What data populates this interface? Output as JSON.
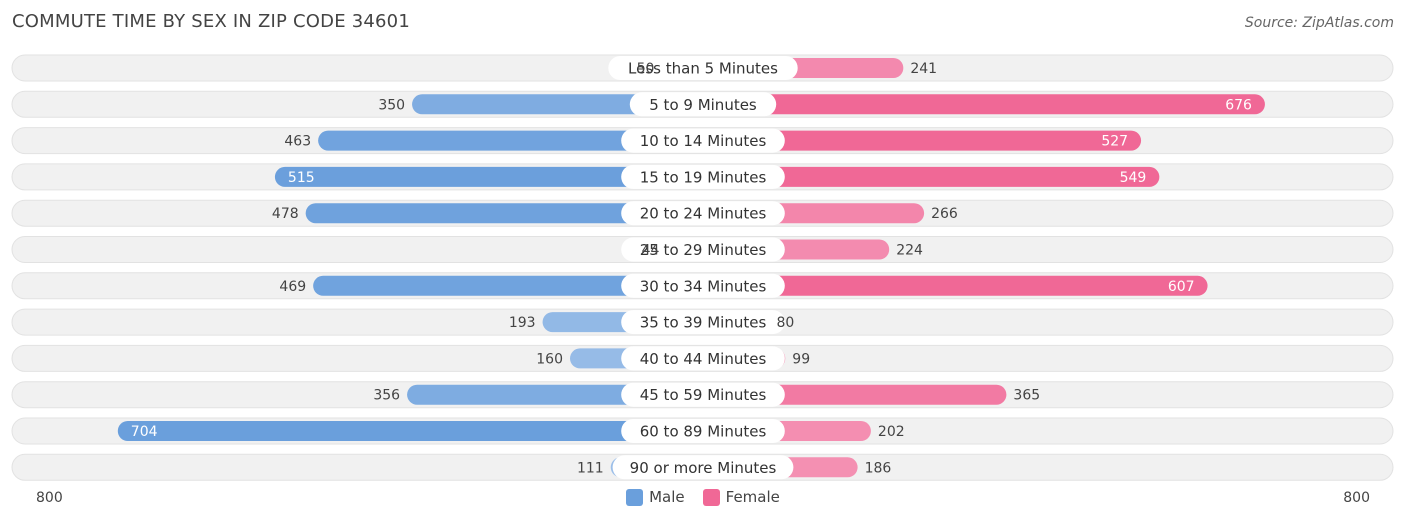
{
  "title": "COMMUTE TIME BY SEX IN ZIP CODE 34601",
  "source": "Source: ZipAtlas.com",
  "colors": {
    "male": "#6a9fdc",
    "female": "#f06896",
    "male_light": "#a9c8ec",
    "female_light": "#f6a6c2"
  },
  "axis": {
    "left_label": "800",
    "right_label": "800"
  },
  "legend": {
    "male": "Male",
    "female": "Female"
  },
  "chart_data": {
    "type": "bar",
    "orientation": "diverging-horizontal",
    "title": "COMMUTE TIME BY SEX IN ZIP CODE 34601",
    "xlim": [
      -800,
      800
    ],
    "categories": [
      "Less than 5 Minutes",
      "5 to 9 Minutes",
      "10 to 14 Minutes",
      "15 to 19 Minutes",
      "20 to 24 Minutes",
      "25 to 29 Minutes",
      "30 to 34 Minutes",
      "35 to 39 Minutes",
      "40 to 44 Minutes",
      "45 to 59 Minutes",
      "60 to 89 Minutes",
      "90 or more Minutes"
    ],
    "series": [
      {
        "name": "Male",
        "values": [
          50,
          350,
          463,
          515,
          478,
          44,
          469,
          193,
          160,
          356,
          704,
          111
        ]
      },
      {
        "name": "Female",
        "values": [
          241,
          676,
          527,
          549,
          266,
          224,
          607,
          80,
          99,
          365,
          202,
          186
        ]
      }
    ],
    "legend_position": "bottom"
  }
}
